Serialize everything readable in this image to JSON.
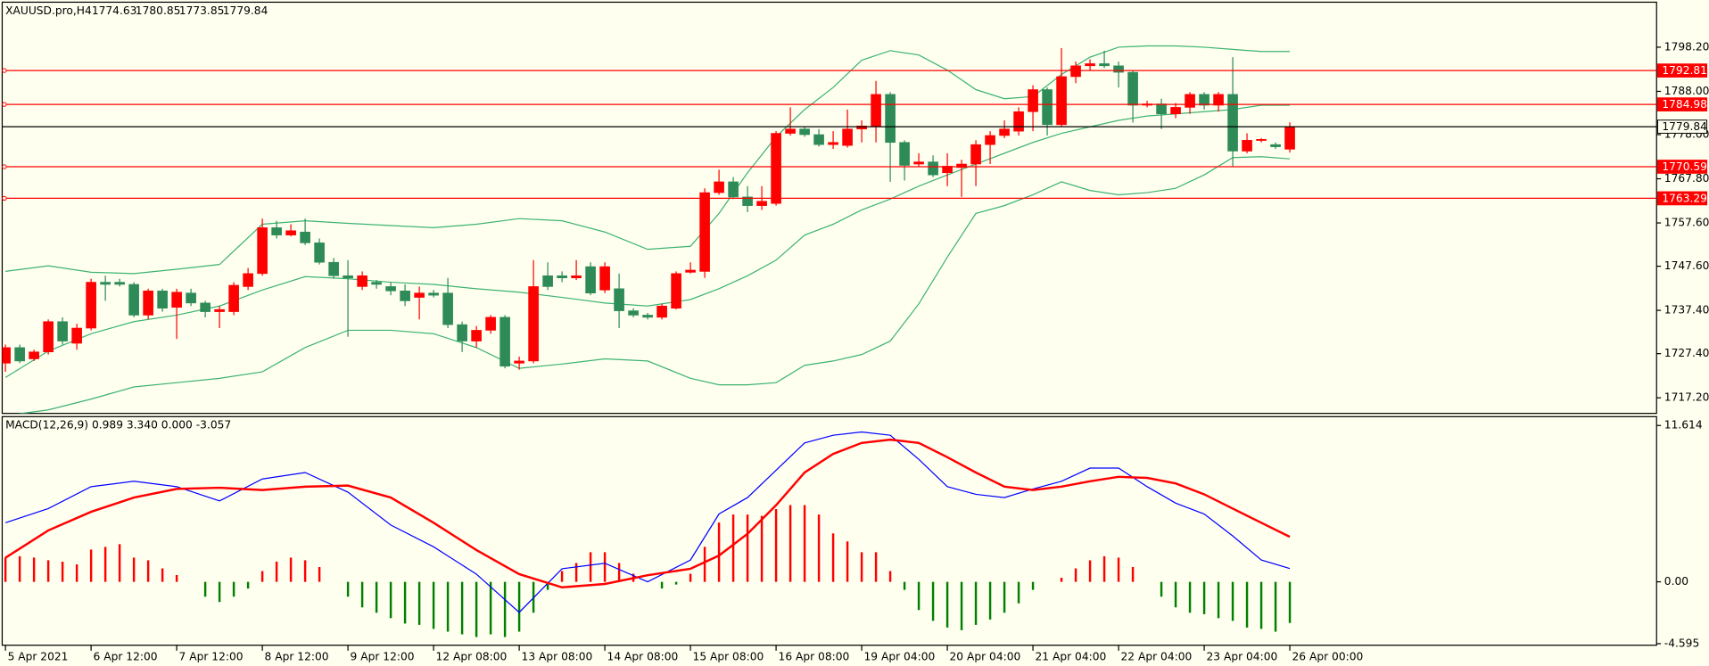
{
  "chart_data": [
    {
      "type": "candlestick",
      "title": "XAUUSD.pro,H4",
      "open": [
        1725.2,
        1728.8,
        1726.2,
        1727.8,
        1734.8,
        1729.8,
        1733.3,
        1743.9,
        1743.9,
        1743.4,
        1736.3,
        1741.9,
        1738.1,
        1741.4,
        1739.1,
        1737.1,
        1737.1,
        1742.9,
        1745.9,
        1756.5,
        1754.8,
        1755.5,
        1753.0,
        1748.5,
        1745.4,
        1742.9,
        1743.9,
        1742.9,
        1741.9,
        1740.4,
        1741.4,
        1741.4,
        1734.1,
        1730.3,
        1732.8,
        1735.8,
        1725.2,
        1725.7,
        1745.4,
        1745.4,
        1744.9,
        1747.5,
        1742.1,
        1742.4,
        1737.3,
        1736.3,
        1735.8,
        1737.9,
        1746.2,
        1746.4,
        1764.6,
        1767.1,
        1763.6,
        1761.6,
        1762.1,
        1778.3,
        1779.3,
        1778.0,
        1775.7,
        1775.5,
        1779.3,
        1780.0,
        1787.3,
        1776.2,
        1771.2,
        1771.7,
        1769.2,
        1770.4,
        1771.2,
        1775.7,
        1777.8,
        1778.8,
        1783.3,
        1788.4,
        1780.3,
        1791.4,
        1793.9,
        1794.4,
        1793.9,
        1792.4,
        1784.8,
        1785.1,
        1782.8,
        1784.3,
        1787.3,
        1784.8,
        1787.3,
        1774.2,
        1776.7,
        1775.7,
        1774.63
      ],
      "high": [
        1729.5,
        1729.5,
        1728.3,
        1735.3,
        1735.8,
        1734.3,
        1744.7,
        1745.4,
        1744.7,
        1743.9,
        1742.4,
        1742.4,
        1742.4,
        1742.4,
        1739.6,
        1738.4,
        1743.9,
        1747.2,
        1758.6,
        1758.1,
        1757.3,
        1758.6,
        1754.0,
        1749.5,
        1749.0,
        1746.4,
        1744.4,
        1743.9,
        1743.4,
        1742.9,
        1742.1,
        1744.9,
        1734.8,
        1733.8,
        1736.3,
        1736.3,
        1726.7,
        1749.0,
        1748.5,
        1746.4,
        1749.0,
        1748.5,
        1748.5,
        1745.9,
        1737.9,
        1736.8,
        1738.9,
        1746.4,
        1748.5,
        1765.6,
        1769.9,
        1768.2,
        1766.1,
        1766.1,
        1778.8,
        1784.3,
        1779.8,
        1779.3,
        1778.8,
        1783.8,
        1781.3,
        1790.4,
        1787.8,
        1776.7,
        1773.7,
        1773.2,
        1773.7,
        1772.2,
        1776.7,
        1778.8,
        1781.3,
        1784.3,
        1789.4,
        1788.9,
        1798.0,
        1794.9,
        1795.4,
        1797.4,
        1794.9,
        1792.9,
        1785.8,
        1786.3,
        1785.3,
        1787.8,
        1787.8,
        1787.8,
        1795.9,
        1778.3,
        1777.2,
        1776.2,
        1780.85
      ],
      "low": [
        1723.2,
        1725.2,
        1725.7,
        1727.2,
        1729.5,
        1728.3,
        1732.8,
        1739.6,
        1742.9,
        1735.8,
        1735.3,
        1737.1,
        1730.8,
        1738.4,
        1735.8,
        1733.3,
        1736.3,
        1742.1,
        1745.4,
        1754.0,
        1754.5,
        1752.5,
        1748.0,
        1744.7,
        1731.3,
        1742.1,
        1742.4,
        1740.9,
        1738.4,
        1735.3,
        1740.4,
        1733.3,
        1727.8,
        1728.8,
        1732.0,
        1724.0,
        1723.7,
        1725.2,
        1742.1,
        1743.9,
        1744.4,
        1740.9,
        1741.4,
        1733.3,
        1735.8,
        1735.3,
        1735.3,
        1737.6,
        1745.9,
        1744.9,
        1764.1,
        1763.1,
        1760.1,
        1760.6,
        1761.6,
        1777.8,
        1777.5,
        1775.2,
        1774.7,
        1775.0,
        1776.2,
        1776.2,
        1767.1,
        1767.4,
        1770.7,
        1768.2,
        1766.1,
        1763.6,
        1766.1,
        1771.2,
        1777.2,
        1777.8,
        1778.8,
        1777.8,
        1779.8,
        1789.9,
        1792.9,
        1793.4,
        1788.9,
        1780.8,
        1784.3,
        1779.3,
        1781.8,
        1782.8,
        1783.8,
        1783.3,
        1770.7,
        1773.7,
        1776.2,
        1774.7,
        1773.85
      ],
      "close": [
        1728.8,
        1725.7,
        1727.8,
        1734.8,
        1730.3,
        1733.3,
        1743.9,
        1743.4,
        1743.4,
        1736.3,
        1741.9,
        1737.9,
        1741.6,
        1739.1,
        1737.1,
        1737.6,
        1743.2,
        1745.9,
        1756.5,
        1754.8,
        1755.8,
        1753.0,
        1748.5,
        1745.4,
        1744.9,
        1745.4,
        1743.4,
        1741.9,
        1739.6,
        1741.4,
        1740.9,
        1734.1,
        1730.3,
        1732.8,
        1735.8,
        1724.5,
        1725.7,
        1742.9,
        1742.9,
        1744.9,
        1745.4,
        1741.4,
        1747.5,
        1737.3,
        1736.3,
        1735.8,
        1738.4,
        1745.9,
        1746.7,
        1764.6,
        1767.1,
        1763.6,
        1761.6,
        1762.6,
        1778.3,
        1779.3,
        1778.0,
        1775.7,
        1776.2,
        1779.3,
        1780.0,
        1787.3,
        1776.2,
        1770.9,
        1771.7,
        1768.7,
        1770.7,
        1771.2,
        1775.7,
        1777.8,
        1779.3,
        1783.3,
        1788.4,
        1780.3,
        1791.4,
        1793.9,
        1794.4,
        1793.9,
        1792.4,
        1784.8,
        1785.1,
        1782.8,
        1784.3,
        1787.3,
        1784.8,
        1787.3,
        1774.2,
        1776.7,
        1776.9,
        1775.2,
        1779.84
      ],
      "up_color": "#ff0000",
      "down_color": "#2e8b57",
      "bands": {
        "x": [
          0,
          3,
          6,
          9,
          12,
          15,
          18,
          21,
          24,
          27,
          30,
          33,
          36,
          39,
          42,
          45,
          48,
          50,
          52,
          54,
          56,
          58,
          60,
          62,
          64,
          66,
          68,
          70,
          72,
          74,
          76,
          78,
          80,
          82,
          84,
          86,
          88,
          90
        ],
        "series": [
          {
            "color": "#3cb371",
            "values": [
              1746.4,
              1747.7,
              1746.2,
              1745.9,
              1746.9,
              1748.0,
              1757.3,
              1758.1,
              1757.5,
              1757.0,
              1756.5,
              1757.3,
              1758.6,
              1758.1,
              1755.5,
              1751.5,
              1752.2,
              1759.8,
              1769.2,
              1777.5,
              1783.8,
              1788.9,
              1795.2,
              1797.4,
              1796.4,
              1792.9,
              1788.4,
              1786.3,
              1786.8,
              1791.9,
              1795.9,
              1798.2,
              1798.5,
              1798.5,
              1798.2,
              1797.7,
              1797.2,
              1797.2
            ]
          },
          {
            "color": "#3cb371",
            "values": [
              1721.9,
              1728.0,
              1732.0,
              1734.8,
              1736.3,
              1738.4,
              1742.1,
              1745.2,
              1744.7,
              1743.9,
              1743.4,
              1742.4,
              1741.6,
              1740.4,
              1739.1,
              1738.4,
              1739.9,
              1742.4,
              1745.4,
              1749.0,
              1754.8,
              1757.3,
              1760.6,
              1763.1,
              1766.1,
              1768.7,
              1771.2,
              1773.7,
              1776.2,
              1778.3,
              1779.8,
              1781.3,
              1782.3,
              1782.8,
              1783.3,
              1783.8,
              1784.8,
              1784.8
            ]
          },
          {
            "color": "#3cb371",
            "values": [
              1713.1,
              1714.4,
              1716.9,
              1719.7,
              1720.7,
              1721.7,
              1723.2,
              1728.8,
              1732.8,
              1732.8,
              1732.0,
              1728.8,
              1724.0,
              1725.0,
              1726.2,
              1725.7,
              1721.7,
              1720.2,
              1720.2,
              1720.7,
              1724.7,
              1725.7,
              1727.2,
              1730.3,
              1738.9,
              1749.7,
              1759.8,
              1761.6,
              1764.1,
              1767.1,
              1765.1,
              1764.1,
              1764.6,
              1765.6,
              1768.7,
              1772.7,
              1772.9,
              1772.4
            ]
          }
        ]
      },
      "hlines": [
        {
          "value": 1792.81,
          "color": "#ff0000"
        },
        {
          "value": 1784.98,
          "color": "#ff0000"
        },
        {
          "value": 1779.84,
          "color": "#000000"
        },
        {
          "value": 1770.59,
          "color": "#ff0000"
        },
        {
          "value": 1763.29,
          "color": "#ff0000"
        }
      ],
      "xlim": [
        -0.23,
        115.7
      ],
      "ylim": [
        1713.6,
        1808.6
      ],
      "yticks": [
        {
          "value": 1798.2,
          "label": "1798.20"
        },
        {
          "value": 1788,
          "label": "1788.00"
        },
        {
          "value": 1778,
          "label": "1778.00"
        },
        {
          "value": 1767.8,
          "label": "1767.80"
        },
        {
          "value": 1757.6,
          "label": "1757.60"
        },
        {
          "value": 1747.6,
          "label": "1747.60"
        },
        {
          "value": 1737.4,
          "label": "1737.40"
        },
        {
          "value": 1727.4,
          "label": "1727.40"
        },
        {
          "value": 1717.2,
          "label": "1717.20"
        }
      ],
      "xticks": [
        {
          "value": 0,
          "label": "5 Apr 2021"
        },
        {
          "value": 6,
          "label": "6 Apr 12:00"
        },
        {
          "value": 12,
          "label": "7 Apr 12:00"
        },
        {
          "value": 18,
          "label": "8 Apr 12:00"
        },
        {
          "value": 24,
          "label": "9 Apr 12:00"
        },
        {
          "value": 30,
          "label": "12 Apr 08:00"
        },
        {
          "value": 36,
          "label": "13 Apr 08:00"
        },
        {
          "value": 42,
          "label": "14 Apr 08:00"
        },
        {
          "value": 48,
          "label": "15 Apr 08:00"
        },
        {
          "value": 54,
          "label": "16 Apr 08:00"
        },
        {
          "value": 60,
          "label": "19 Apr 04:00"
        },
        {
          "value": 66,
          "label": "20 Apr 04:00"
        },
        {
          "value": 72,
          "label": "21 Apr 04:00"
        },
        {
          "value": 78,
          "label": "22 Apr 04:00"
        },
        {
          "value": 84,
          "label": "23 Apr 04:00"
        },
        {
          "value": 90,
          "label": "26 Apr 00:00"
        }
      ]
    },
    {
      "type": "macd",
      "title": "MACD(12,26,9) 0.989 3.340 0.000 -3.057",
      "histogram": [
        1.8,
        1.9,
        1.8,
        1.6,
        1.5,
        1.3,
        2.4,
        2.6,
        2.8,
        1.8,
        1.6,
        1.0,
        0.5,
        0,
        -1.1,
        -1.5,
        -1.1,
        -0.5,
        0.8,
        1.5,
        1.8,
        1.6,
        1.1,
        0,
        -1.1,
        -1.9,
        -2.3,
        -2.7,
        -3.1,
        -3.2,
        -3.5,
        -3.7,
        -3.9,
        -4.1,
        -3.9,
        -4.1,
        -3.7,
        -2.3,
        -0.6,
        0.8,
        1.4,
        2.2,
        2.2,
        1.4,
        0.6,
        0,
        -0.5,
        -0.2,
        0.6,
        2.6,
        4.4,
        5.0,
        5.0,
        4.9,
        5.4,
        5.7,
        5.7,
        5.0,
        3.6,
        3.0,
        2.2,
        2.2,
        0.8,
        -0.6,
        -2.1,
        -2.9,
        -3.4,
        -3.6,
        -3.2,
        -2.8,
        -2.3,
        -1.6,
        -0.6,
        0,
        0.3,
        1.0,
        1.6,
        1.9,
        1.8,
        1.1,
        0,
        -1.1,
        -1.9,
        -2.3,
        -2.4,
        -2.7,
        -2.9,
        -3.4,
        -3.5,
        -3.7,
        -3.057
      ],
      "up_color": "#ff0000",
      "down_color": "#008000",
      "x": [
        0,
        3,
        6,
        9,
        12,
        15,
        18,
        21,
        24,
        27,
        30,
        33,
        36,
        39,
        42,
        45,
        48,
        50,
        52,
        54,
        56,
        58,
        60,
        62,
        64,
        66,
        68,
        70,
        72,
        74,
        76,
        78,
        80,
        82,
        84,
        86,
        88,
        90
      ],
      "series": [
        {
          "color": "#0000ff",
          "values": [
            4.39,
            5.44,
            7.07,
            7.47,
            7.07,
            6.01,
            7.64,
            8.12,
            6.66,
            4.22,
            2.6,
            0.57,
            -2.27,
            0.97,
            1.38,
            0,
            1.62,
            5.04,
            6.26,
            8.29,
            10.32,
            10.89,
            11.13,
            10.89,
            9.1,
            7.07,
            6.5,
            6.26,
            6.9,
            7.47,
            8.45,
            8.45,
            7.07,
            5.85,
            5.04,
            3.41,
            1.62,
            0.989
          ]
        },
        {
          "color": "#ff0000",
          "values": [
            1.79,
            3.82,
            5.2,
            6.26,
            6.9,
            6.99,
            6.82,
            7.07,
            7.15,
            6.26,
            4.39,
            2.36,
            0.57,
            -0.41,
            -0.16,
            0.49,
            0.97,
            1.95,
            3.57,
            5.69,
            8.12,
            9.5,
            10.32,
            10.56,
            10.32,
            9.26,
            8.12,
            7.07,
            6.82,
            7.07,
            7.47,
            7.8,
            7.72,
            7.31,
            6.5,
            5.44,
            4.39,
            3.34
          ]
        }
      ],
      "xlim": [
        -0.23,
        115.7
      ],
      "ylim": [
        -4.71,
        12.27
      ],
      "yticks": [
        11.614,
        {
          "value": 0,
          "label": "0.00"
        },
        -4.595
      ]
    }
  ]
}
